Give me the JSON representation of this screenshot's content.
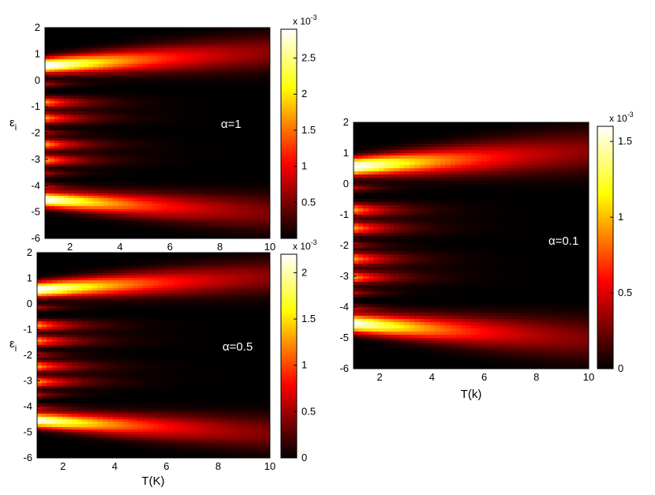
{
  "chart_data": [
    {
      "type": "heatmap",
      "annotation": "α=1",
      "xlabel": "",
      "ylabel": "ε",
      "ylabel_sub": "i",
      "xlim": [
        1,
        10
      ],
      "ylim": [
        -6,
        2
      ],
      "xticks": [
        2,
        4,
        6,
        8,
        10
      ],
      "yticks": [
        -6,
        -5,
        -4,
        -3,
        -2,
        -1,
        0,
        1,
        2
      ],
      "colorbar": {
        "range": [
          0,
          0.0029
        ],
        "ticks": [
          0.5,
          1,
          1.5,
          2,
          2.5
        ],
        "exponent_base": "x 10",
        "exponent": "-3"
      },
      "peak_level_ratio": 1.0
    },
    {
      "type": "heatmap",
      "annotation": "α=0.5",
      "xlabel": "T(K)",
      "ylabel": "ε",
      "ylabel_sub": "i",
      "xlim": [
        1,
        10
      ],
      "ylim": [
        -6,
        2
      ],
      "xticks": [
        2,
        4,
        6,
        8,
        10
      ],
      "yticks": [
        -6,
        -5,
        -4,
        -3,
        -2,
        -1,
        0,
        1,
        2
      ],
      "colorbar": {
        "range": [
          0,
          0.0022
        ],
        "ticks": [
          0,
          0.5,
          1,
          1.5,
          2
        ],
        "exponent_base": "x 10",
        "exponent": "-3"
      },
      "peak_level_ratio": 1.0
    },
    {
      "type": "heatmap",
      "annotation": "α=0.1",
      "xlabel": "T(k)",
      "ylabel": "",
      "ylabel_sub": "",
      "xlim": [
        1,
        10
      ],
      "ylim": [
        -6,
        2
      ],
      "xticks": [
        2,
        4,
        6,
        8,
        10
      ],
      "yticks": [
        -6,
        -5,
        -4,
        -3,
        -2,
        -1,
        0,
        1,
        2
      ],
      "colorbar": {
        "range": [
          0,
          0.0016
        ],
        "ticks": [
          0,
          0.5,
          1,
          1.5
        ],
        "exponent_base": "x 10",
        "exponent": "-3"
      },
      "peak_level_ratio": 1.0
    }
  ]
}
